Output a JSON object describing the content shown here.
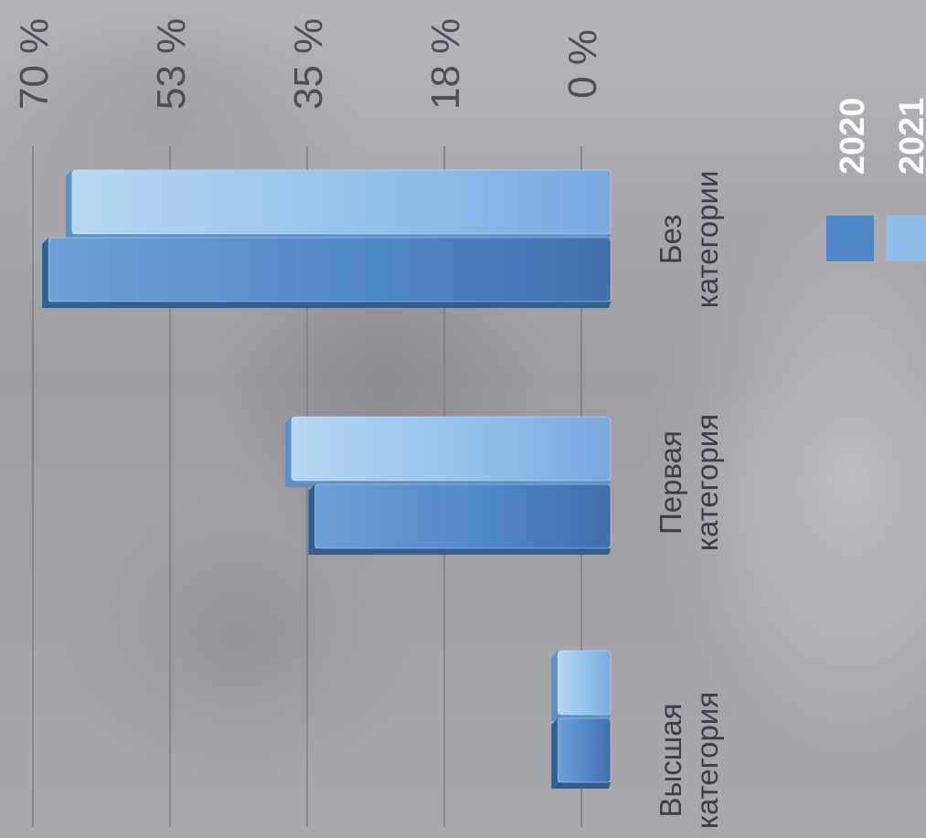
{
  "chart_data": {
    "type": "bar",
    "categories": [
      "Без категории",
      "Первая категория",
      "Высшая категория"
    ],
    "category_lines": [
      [
        "Без",
        "категории"
      ],
      [
        "Первая",
        "категория"
      ],
      [
        "Высшая",
        "категория"
      ]
    ],
    "series": [
      {
        "name": "2020",
        "values": [
          68,
          34,
          3
        ],
        "color": "#4f86c6"
      },
      {
        "name": "2021",
        "values": [
          65,
          37,
          3
        ],
        "color": "#8fbde8"
      }
    ],
    "y_ticks": [
      "0 %",
      "18 %",
      "35 %",
      "53 %",
      "70 %"
    ],
    "y_tick_values": [
      0,
      17.5,
      35,
      52.5,
      70
    ],
    "ylim": [
      0,
      70
    ],
    "grid": true,
    "legend_position": "right",
    "orientation": "rotated 90° clockwise"
  }
}
